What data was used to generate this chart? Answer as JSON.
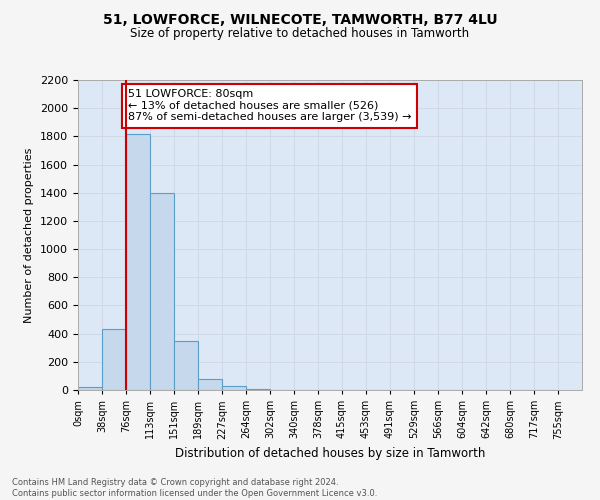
{
  "title": "51, LOWFORCE, WILNECOTE, TAMWORTH, B77 4LU",
  "subtitle": "Size of property relative to detached houses in Tamworth",
  "xlabel": "Distribution of detached houses by size in Tamworth",
  "ylabel": "Number of detached properties",
  "bin_labels": [
    "0sqm",
    "38sqm",
    "76sqm",
    "113sqm",
    "151sqm",
    "189sqm",
    "227sqm",
    "264sqm",
    "302sqm",
    "340sqm",
    "378sqm",
    "415sqm",
    "453sqm",
    "491sqm",
    "529sqm",
    "566sqm",
    "604sqm",
    "642sqm",
    "680sqm",
    "717sqm",
    "755sqm"
  ],
  "bar_heights": [
    20,
    430,
    1820,
    1400,
    350,
    80,
    25,
    5,
    0,
    0,
    0,
    0,
    0,
    0,
    0,
    0,
    0,
    0,
    0,
    0
  ],
  "bar_color": "#c5d8ec",
  "bar_edge_color": "#5a9eca",
  "grid_color": "#d0d8e8",
  "bg_color": "#dce8f5",
  "vline_color": "#cc0000",
  "annotation_title": "51 LOWFORCE: 80sqm",
  "annotation_line1": "← 13% of detached houses are smaller (526)",
  "annotation_line2": "87% of semi-detached houses are larger (3,539) →",
  "annotation_box_color": "#ffffff",
  "annotation_box_edge": "#cc0000",
  "footer_line1": "Contains HM Land Registry data © Crown copyright and database right 2024.",
  "footer_line2": "Contains public sector information licensed under the Open Government Licence v3.0.",
  "ylim": [
    0,
    2200
  ],
  "yticks": [
    0,
    200,
    400,
    600,
    800,
    1000,
    1200,
    1400,
    1600,
    1800,
    2000,
    2200
  ],
  "bin_edges": [
    0,
    38,
    76,
    113,
    151,
    189,
    227,
    264,
    302,
    340,
    378,
    415,
    453,
    491,
    529,
    566,
    604,
    642,
    680,
    717,
    755
  ],
  "fig_bg": "#f5f5f5"
}
